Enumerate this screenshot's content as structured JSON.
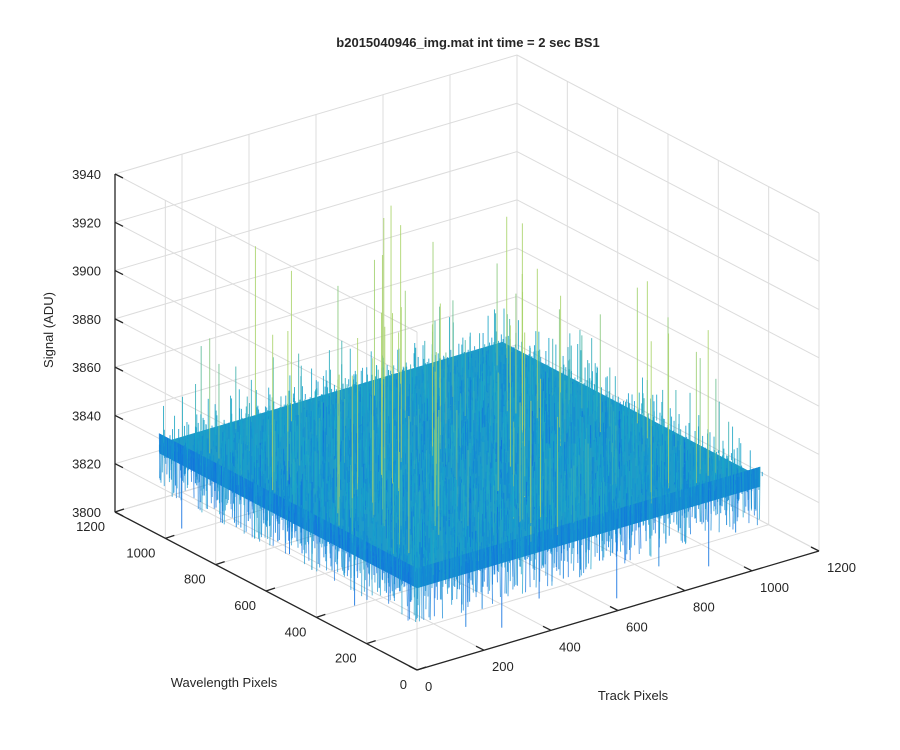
{
  "chart_data": {
    "type": "surface",
    "title": "b2015040946_img.mat int time = 2 sec   BS1",
    "xlabel": "Track Pixels",
    "ylabel": "Wavelength Pixels",
    "zlabel": "Signal (ADU)",
    "xlim": [
      0,
      1200
    ],
    "ylim": [
      0,
      1200
    ],
    "zlim": [
      3800,
      3940
    ],
    "x_ticks": [
      "0",
      "200",
      "400",
      "600",
      "800",
      "1000",
      "1200"
    ],
    "y_ticks": [
      "0",
      "200",
      "400",
      "600",
      "800",
      "1000",
      "1200"
    ],
    "z_ticks": [
      "3800",
      "3820",
      "3840",
      "3860",
      "3880",
      "3900",
      "3920",
      "3940"
    ],
    "data_extent": {
      "x": [
        0,
        1024
      ],
      "y": [
        0,
        1024
      ]
    },
    "mean_signal": 3838,
    "signal_range": [
      3805,
      3915
    ],
    "grid": true,
    "colormap": "parula",
    "colors": {
      "low": "#0d6fe0",
      "mid": "#1aa6c8",
      "high": "#a9d36a"
    }
  }
}
